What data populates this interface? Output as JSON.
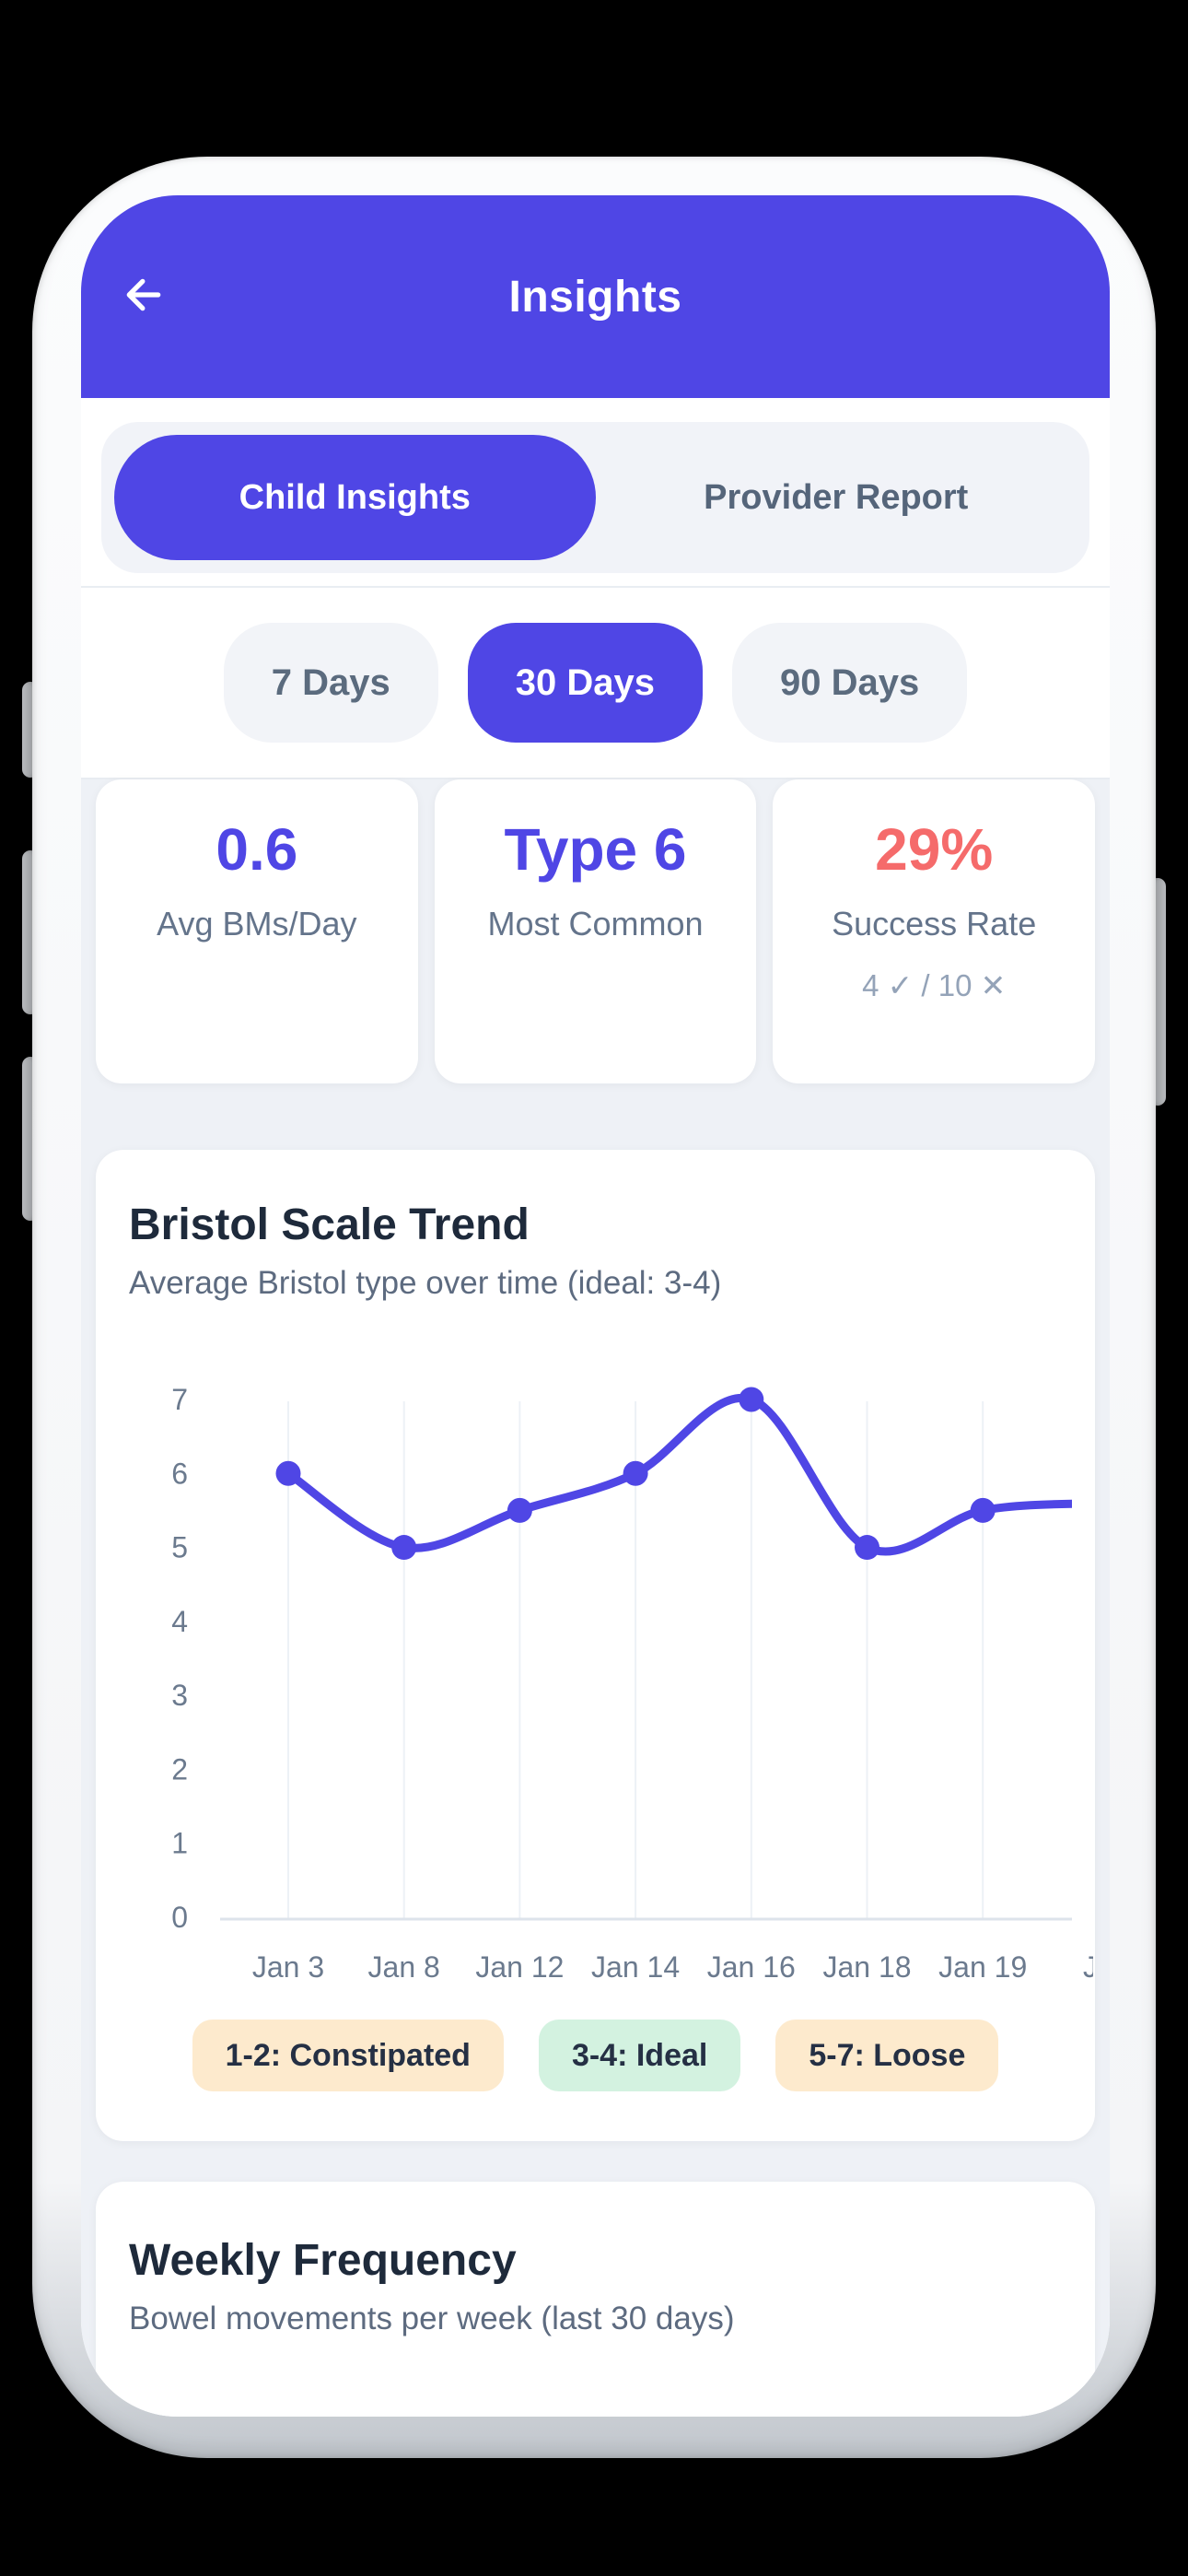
{
  "header": {
    "title": "Insights",
    "back_icon": "arrow-left"
  },
  "tabs": [
    {
      "label": "Child Insights",
      "active": true
    },
    {
      "label": "Provider Report",
      "active": false
    }
  ],
  "time_filters": [
    {
      "label": "7 Days",
      "active": false
    },
    {
      "label": "30 Days",
      "active": true
    },
    {
      "label": "90 Days",
      "active": false
    }
  ],
  "stats": [
    {
      "value": "0.6",
      "label": "Avg BMs/Day",
      "color": "#4f46e5"
    },
    {
      "value": "Type 6",
      "label": "Most Common",
      "color": "#4f46e5"
    },
    {
      "value": "29%",
      "label": "Success Rate",
      "sub": "4 ✓ / 10 ✕",
      "color": "#f56b6b"
    }
  ],
  "bristol_card": {
    "title": "Bristol Scale Trend",
    "subtitle": "Average Bristol type over time (ideal: 3-4)",
    "legend": [
      {
        "label": "1-2: Constipated",
        "bg": "#fdeacd"
      },
      {
        "label": "3-4: Ideal",
        "bg": "#d3f2e0"
      },
      {
        "label": "5-7: Loose",
        "bg": "#fdeacd"
      }
    ]
  },
  "chart_data": {
    "type": "line",
    "title": "Bristol Scale Trend",
    "x_labels": [
      "Jan 3",
      "Jan 8",
      "Jan 12",
      "Jan 14",
      "Jan 16",
      "Jan 18",
      "Jan 19",
      "Ja"
    ],
    "values": [
      6,
      5,
      5.5,
      6,
      7,
      5,
      5.5,
      5.6
    ],
    "visible_dots": 7,
    "last_label_clipped": true,
    "ylim": [
      0,
      7
    ],
    "y_ticks": [
      7,
      6,
      5,
      4,
      3,
      2,
      1,
      0
    ],
    "ylabel": "",
    "xlabel": "",
    "grid": "vertical",
    "legend_position": "bottom",
    "line_color": "#4f46e5",
    "grid_color": "#edf1f6",
    "axis_color": "#dde3eb",
    "tick_color": "#6b7a8e"
  },
  "weekly_card": {
    "title": "Weekly Frequency",
    "subtitle": "Bowel movements per week (last 30 days)"
  },
  "colors": {
    "accent_purple": "#4f46e5",
    "danger_red": "#f56b6b",
    "page_bg": "#eef1f6",
    "text_dark": "#1e2a3b",
    "text_gray": "#64748b"
  }
}
